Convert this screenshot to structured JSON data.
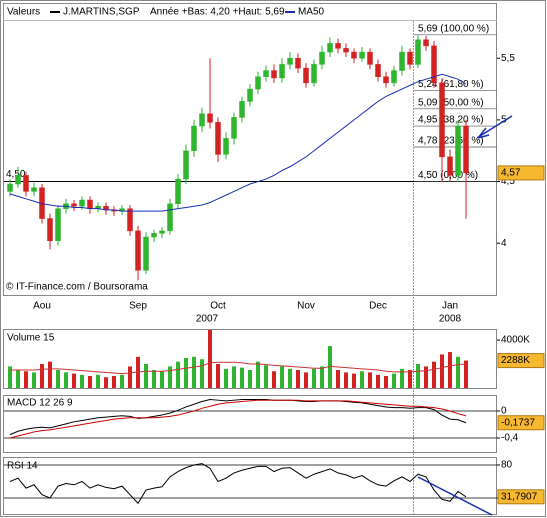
{
  "chart_data": [
    {
      "type": "candlestick",
      "legend_label": "Valeurs",
      "title": "J.MARTINS,SGP",
      "subtitle": "Année +Bas: 4,20 +Haut: 5,69",
      "credit": "© IT-Finance.com / Boursorama",
      "categories": [
        null,
        null,
        null,
        null,
        "Aou",
        null,
        null,
        null,
        null,
        null,
        null,
        null,
        null,
        null,
        null,
        null,
        "Sep",
        null,
        null,
        null,
        null,
        null,
        null,
        null,
        null,
        null,
        "Oct",
        null,
        null,
        null,
        null,
        null,
        null,
        null,
        null,
        null,
        null,
        "Nov",
        null,
        null,
        null,
        null,
        null,
        null,
        null,
        null,
        "Dec",
        null,
        null,
        null,
        null,
        null,
        null,
        null,
        null,
        "Jan",
        null,
        null
      ],
      "years": [
        "2007",
        "2008"
      ],
      "open": [
        4.42,
        4.48,
        4.55,
        4.42,
        4.45,
        4.2,
        4.02,
        4.28,
        4.32,
        4.3,
        4.35,
        4.28,
        4.3,
        4.27,
        4.26,
        4.28,
        4.1,
        3.78,
        4.05,
        4.08,
        4.1,
        4.32,
        4.52,
        4.75,
        4.95,
        5.05,
        4.98,
        4.72,
        4.85,
        5.02,
        5.15,
        5.25,
        5.35,
        5.4,
        5.34,
        5.45,
        5.5,
        5.42,
        5.3,
        5.45,
        5.55,
        5.62,
        5.58,
        5.55,
        5.5,
        5.55,
        5.45,
        5.35,
        5.3,
        5.4,
        5.55,
        5.45,
        5.65,
        5.6,
        5.3,
        4.7,
        4.55,
        4.95
      ],
      "high": [
        4.52,
        4.62,
        4.58,
        4.49,
        4.48,
        4.24,
        4.31,
        4.36,
        4.35,
        4.38,
        4.38,
        4.33,
        4.33,
        4.3,
        4.31,
        4.31,
        4.14,
        4.09,
        4.11,
        4.13,
        4.36,
        4.56,
        4.8,
        5.0,
        5.1,
        5.5,
        5.02,
        4.9,
        5.06,
        5.19,
        5.29,
        5.39,
        5.44,
        5.45,
        5.5,
        5.55,
        5.54,
        5.46,
        5.49,
        5.6,
        5.67,
        5.66,
        5.62,
        5.58,
        5.59,
        5.58,
        5.49,
        5.39,
        5.44,
        5.6,
        5.58,
        5.69,
        5.68,
        5.64,
        5.34,
        4.76,
        5.0,
        5.0
      ],
      "low": [
        4.38,
        4.45,
        4.38,
        4.38,
        4.16,
        3.95,
        3.98,
        4.24,
        4.26,
        4.27,
        4.24,
        4.25,
        4.23,
        4.22,
        4.23,
        4.06,
        3.7,
        3.75,
        4.01,
        4.04,
        4.07,
        4.28,
        4.48,
        4.7,
        4.9,
        4.93,
        4.66,
        4.68,
        4.8,
        4.98,
        5.11,
        5.21,
        5.31,
        5.3,
        5.3,
        5.41,
        5.38,
        5.26,
        5.27,
        5.41,
        5.51,
        5.54,
        5.51,
        5.46,
        5.47,
        5.41,
        5.31,
        5.26,
        5.27,
        5.36,
        5.41,
        5.42,
        5.56,
        5.26,
        4.5,
        4.5,
        4.5,
        4.2
      ],
      "close": [
        4.48,
        4.55,
        4.42,
        4.45,
        4.2,
        4.02,
        4.28,
        4.32,
        4.3,
        4.35,
        4.28,
        4.3,
        4.27,
        4.26,
        4.28,
        4.1,
        3.78,
        4.05,
        4.08,
        4.1,
        4.32,
        4.52,
        4.75,
        4.95,
        5.05,
        4.98,
        4.72,
        4.85,
        5.02,
        5.15,
        5.25,
        5.35,
        5.4,
        5.34,
        5.45,
        5.5,
        5.42,
        5.3,
        5.45,
        5.55,
        5.62,
        5.58,
        5.55,
        5.5,
        5.55,
        5.45,
        5.35,
        5.3,
        5.4,
        5.55,
        5.45,
        5.65,
        5.6,
        5.3,
        4.7,
        4.55,
        4.95,
        4.57
      ],
      "up_color": "#2fb52f",
      "down_color": "#d42222",
      "ma": {
        "name": "MA50",
        "color": "#1a2fb0",
        "values": [
          4.4,
          4.38,
          4.36,
          4.34,
          4.32,
          4.31,
          4.3,
          4.3,
          4.29,
          4.29,
          4.28,
          4.28,
          4.27,
          4.27,
          4.26,
          4.26,
          4.26,
          4.26,
          4.26,
          4.26,
          4.27,
          4.28,
          4.29,
          4.3,
          4.31,
          4.33,
          4.36,
          4.39,
          4.42,
          4.45,
          4.48,
          4.5,
          4.52,
          4.55,
          4.59,
          4.62,
          4.66,
          4.7,
          4.75,
          4.8,
          4.85,
          4.9,
          4.95,
          5.0,
          5.05,
          5.1,
          5.15,
          5.19,
          5.22,
          5.25,
          5.28,
          5.31,
          5.33,
          5.35,
          5.37,
          5.35,
          5.33,
          5.29
        ]
      },
      "ylim": [
        3.58,
        5.81
      ],
      "yticks": [
        {
          "value": 5.5,
          "label": "5,5"
        },
        5,
        {
          "value": 4.5,
          "label": "4,5"
        },
        4
      ],
      "level": {
        "value": 4.5,
        "label": "4,50"
      },
      "fib": [
        {
          "value": 5.69,
          "label": "5,69 (100,00 %)"
        },
        {
          "value": 5.24,
          "label": "5,24 (61,80 %)"
        },
        {
          "value": 5.09,
          "label": "5,09 (50,00 %)"
        },
        {
          "value": 4.95,
          "label": "4,95 (38,20 %)"
        },
        {
          "value": 4.78,
          "label": "4,78 (23,60 %)"
        },
        {
          "value": 4.5,
          "label": "4,50 (0,00 %)"
        }
      ],
      "current": {
        "value": 4.57,
        "label": "4,57"
      }
    },
    {
      "type": "bar",
      "title": "Volume 15",
      "values": [
        1800,
        1500,
        1400,
        1300,
        2000,
        2200,
        1500,
        1300,
        1200,
        1100,
        1000,
        1100,
        900,
        1000,
        1100,
        1800,
        2600,
        2000,
        1500,
        1400,
        1800,
        2200,
        2500,
        2600,
        2400,
        4840,
        2000,
        1600,
        1800,
        1700,
        1500,
        2200,
        1900,
        1400,
        1800,
        1600,
        1500,
        1300,
        1600,
        1800,
        3500,
        1500,
        1300,
        1200,
        1400,
        1300,
        1100,
        1000,
        1200,
        1600,
        1500,
        2000,
        1800,
        2200,
        2800,
        3000,
        2600,
        2288
      ],
      "ma_color": "#cc3333",
      "ma_values": [
        1500,
        1500,
        1500,
        1500,
        1550,
        1600,
        1600,
        1550,
        1500,
        1450,
        1400,
        1350,
        1300,
        1250,
        1200,
        1250,
        1350,
        1400,
        1400,
        1400,
        1450,
        1550,
        1650,
        1750,
        1850,
        2100,
        2150,
        2150,
        2150,
        2100,
        2000,
        2000,
        1950,
        1900,
        1850,
        1800,
        1750,
        1700,
        1650,
        1650,
        1800,
        1750,
        1700,
        1650,
        1600,
        1550,
        1500,
        1400,
        1350,
        1350,
        1350,
        1400,
        1450,
        1550,
        1700,
        1850,
        1950,
        2000
      ],
      "ylim": [
        0,
        4840
      ],
      "yticks": [
        {
          "value": 4000,
          "label": "4000K"
        }
      ],
      "current": {
        "value": 2288,
        "label": "2288K"
      }
    },
    {
      "type": "line",
      "title": "MACD 12 26 9",
      "series": [
        {
          "color": "#000000",
          "values": [
            -0.35,
            -0.3,
            -0.27,
            -0.25,
            -0.24,
            -0.25,
            -0.22,
            -0.19,
            -0.16,
            -0.14,
            -0.12,
            -0.1,
            -0.09,
            -0.08,
            -0.07,
            -0.08,
            -0.11,
            -0.1,
            -0.08,
            -0.06,
            -0.03,
            0.01,
            0.06,
            0.1,
            0.14,
            0.17,
            0.16,
            0.15,
            0.16,
            0.17,
            0.17,
            0.17,
            0.17,
            0.16,
            0.16,
            0.16,
            0.15,
            0.14,
            0.14,
            0.15,
            0.15,
            0.15,
            0.14,
            0.13,
            0.12,
            0.1,
            0.08,
            0.06,
            0.05,
            0.05,
            0.04,
            0.05,
            0.05,
            0.02,
            -0.06,
            -0.12,
            -0.13,
            -0.1737
          ]
        },
        {
          "color": "#cc0000",
          "values": [
            -0.4,
            -0.37,
            -0.34,
            -0.31,
            -0.29,
            -0.28,
            -0.26,
            -0.24,
            -0.22,
            -0.2,
            -0.18,
            -0.16,
            -0.14,
            -0.12,
            -0.11,
            -0.1,
            -0.1,
            -0.1,
            -0.1,
            -0.09,
            -0.08,
            -0.06,
            -0.03,
            0.0,
            0.04,
            0.07,
            0.1,
            0.12,
            0.13,
            0.14,
            0.15,
            0.16,
            0.16,
            0.16,
            0.16,
            0.16,
            0.16,
            0.15,
            0.15,
            0.15,
            0.15,
            0.15,
            0.15,
            0.14,
            0.13,
            0.12,
            0.11,
            0.1,
            0.09,
            0.08,
            0.07,
            0.07,
            0.06,
            0.05,
            0.03,
            0.0,
            -0.04,
            -0.07
          ]
        }
      ],
      "ylim": [
        -0.607,
        0.222
      ],
      "yticks": [
        0,
        {
          "value": -0.4,
          "label": "-0,4"
        }
      ],
      "grid": true,
      "current": {
        "value": -0.1737,
        "label": "-0,1737"
      }
    },
    {
      "type": "line",
      "title": "RSI 14",
      "series": [
        {
          "color": "#000000",
          "values": [
            55,
            60,
            45,
            50,
            35,
            30,
            48,
            52,
            50,
            55,
            45,
            50,
            46,
            44,
            48,
            35,
            22,
            42,
            45,
            47,
            62,
            70,
            76,
            80,
            82,
            75,
            55,
            60,
            68,
            72,
            75,
            78,
            78,
            70,
            75,
            76,
            68,
            60,
            66,
            70,
            74,
            68,
            65,
            60,
            64,
            56,
            50,
            48,
            56,
            62,
            55,
            66,
            62,
            42,
            28,
            25,
            40,
            31.7907
          ]
        }
      ],
      "ylim": [
        4.2,
        90.6
      ],
      "yticks": [
        80,
        30
      ],
      "grid": true,
      "current": {
        "value": 31.7907,
        "label": "31,7907"
      }
    }
  ]
}
